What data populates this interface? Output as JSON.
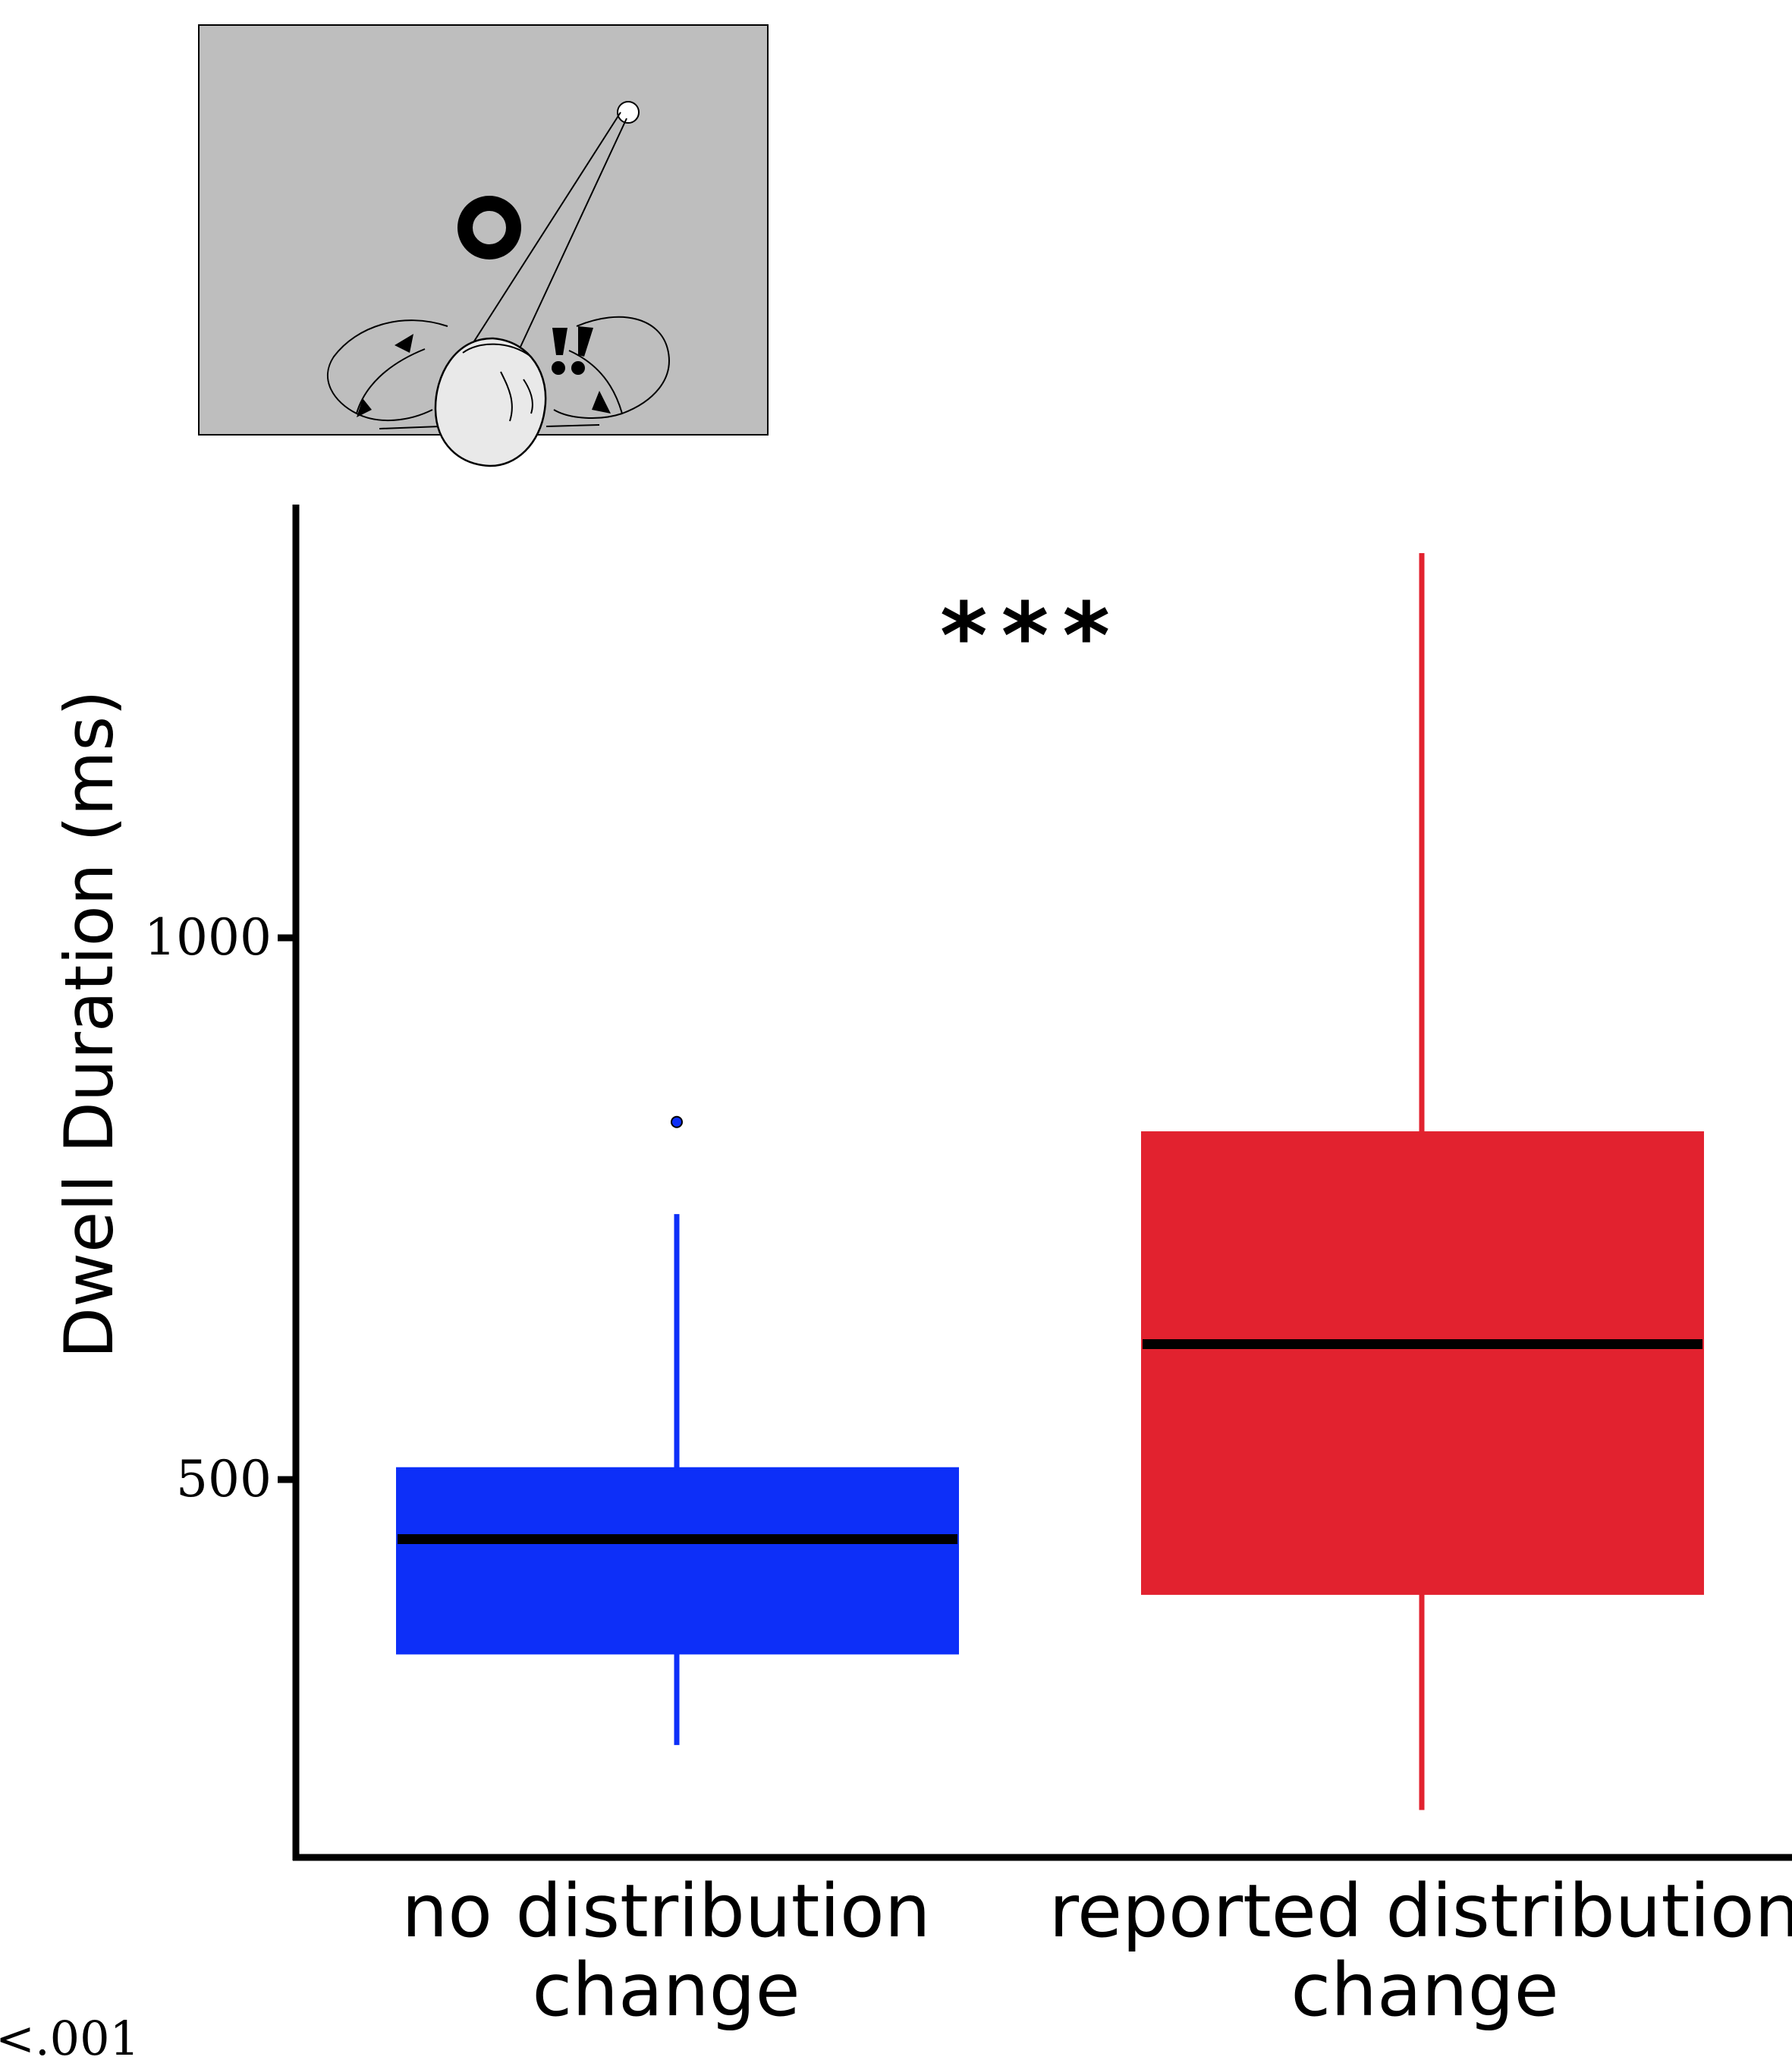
{
  "chart_data": {
    "type": "box",
    "ylabel": "Dwell Duration (ms)",
    "yticks": [
      500,
      1000
    ],
    "ylim": [
      150,
      1400
    ],
    "categories": [
      "no distribution change",
      "reported distribution change"
    ],
    "category_lines": [
      [
        "no distribution",
        "change"
      ],
      [
        "reported distribution",
        "change"
      ]
    ],
    "boxes": [
      {
        "name": "no distribution change",
        "whisker_low": 255,
        "q1": 340,
        "median": 445,
        "q3": 510,
        "whisker_high": 745,
        "outliers": [
          830
        ],
        "color": "#0d2ff8"
      },
      {
        "name": "reported distribution change",
        "whisker_low": 195,
        "q1": 395,
        "median": 625,
        "q3": 820,
        "whisker_high": 1355,
        "outliers": [],
        "color": "#e2222f"
      }
    ],
    "significance": "***",
    "footnote": "<.001",
    "grid": false,
    "legend": "none"
  },
  "colors": {
    "axis": "#000000",
    "median": "#000000",
    "scene_background": "#bebebe"
  },
  "inset": {
    "description_icon": "eye-gaze-scene-icon"
  }
}
